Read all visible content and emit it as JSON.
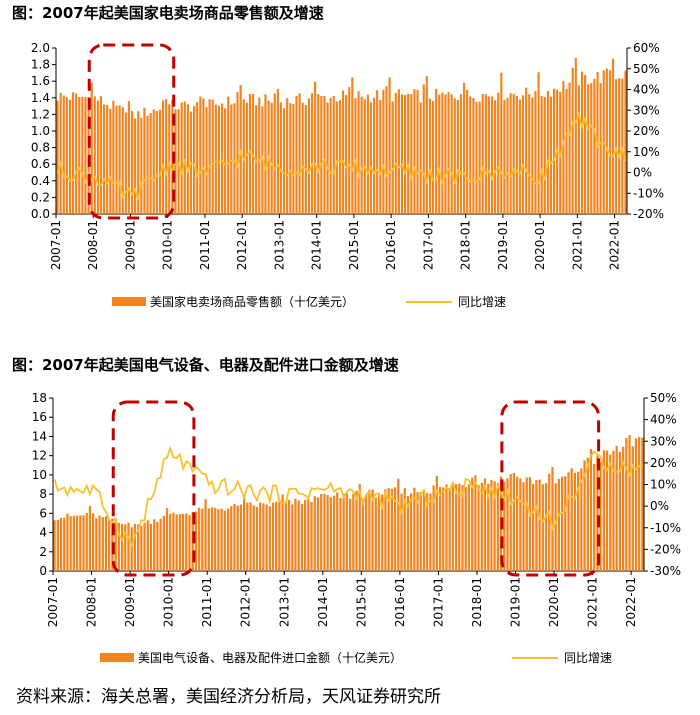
{
  "chart_data": [
    {
      "type": "bar+line",
      "title": "图：2007年起美国家电卖场商品零售额及增速",
      "x_tick_labels": [
        "2007-01",
        "2008-01",
        "2009-01",
        "2010-01",
        "2011-01",
        "2012-01",
        "2013-01",
        "2014-01",
        "2015-01",
        "2016-01",
        "2017-01",
        "2018-01",
        "2019-01",
        "2020-01",
        "2021-01",
        "2022-01"
      ],
      "y_left": {
        "min": 0,
        "max": 2.0,
        "step": 0.2,
        "tick_labels": [
          "0.0",
          "0.2",
          "0.4",
          "0.6",
          "0.8",
          "1.0",
          "1.2",
          "1.4",
          "1.6",
          "1.8",
          "2.0"
        ]
      },
      "y_right": {
        "min": -20,
        "max": 60,
        "step": 10,
        "tick_labels": [
          "-20%",
          "-10%",
          "0%",
          "10%",
          "20%",
          "30%",
          "40%",
          "50%",
          "60%"
        ]
      },
      "legend": {
        "bar": "美国家电卖场商品零售额（十亿美元）",
        "line": "同比增速"
      },
      "bar_unit": "十亿美元",
      "line_unit": "%",
      "annotation": "dashed box: 2008-01 to 2010-01",
      "yearly_bar_base": [
        1.42,
        1.4,
        1.18,
        1.3,
        1.3,
        1.38,
        1.35,
        1.4,
        1.42,
        1.43,
        1.42,
        1.43,
        1.45,
        1.45,
        1.62,
        1.68
      ],
      "yearly_growth": [
        1,
        -2,
        -12,
        4,
        0,
        8,
        2,
        3,
        2,
        1,
        -1,
        -3,
        1,
        -2,
        25,
        8
      ],
      "highlight": [
        {
          "from": "2008-01",
          "to": "2010-01"
        }
      ]
    },
    {
      "type": "bar+line",
      "title": "图：2007年起美国电气设备、电器及配件进口金额及增速",
      "x_tick_labels": [
        "2007-01",
        "2008-01",
        "2009-01",
        "2010-01",
        "2011-01",
        "2012-01",
        "2013-01",
        "2014-01",
        "2015-01",
        "2016-01",
        "2017-01",
        "2018-01",
        "2019-01",
        "2020-01",
        "2021-01",
        "2022-01"
      ],
      "y_left": {
        "min": 0,
        "max": 18,
        "step": 2,
        "tick_labels": [
          "0",
          "2",
          "4",
          "6",
          "8",
          "10",
          "12",
          "14",
          "16",
          "18"
        ]
      },
      "y_right": {
        "min": -30,
        "max": 50,
        "step": 10,
        "tick_labels": [
          "-30%",
          "-20%",
          "-10%",
          "0%",
          "10%",
          "20%",
          "30%",
          "40%",
          "50%"
        ]
      },
      "legend": {
        "bar": "美国电气设备、电器及配件进口金额（十亿美元）",
        "line": "同比增速"
      },
      "bar_unit": "十亿美元",
      "line_unit": "%",
      "annotation": "dashed boxes: 2008-09 to 2010-07 and 2018-10 to 2021-01",
      "yearly_bar_base": [
        5.6,
        5.8,
        4.6,
        5.8,
        6.4,
        6.8,
        7.0,
        7.6,
        8.0,
        8.2,
        8.6,
        9.4,
        9.6,
        9.2,
        11.6,
        13.2
      ],
      "yearly_growth": [
        9,
        7,
        -18,
        25,
        10,
        7,
        5,
        8,
        5,
        0,
        6,
        10,
        3,
        -8,
        22,
        17
      ],
      "highlight": [
        {
          "from": "2008-09",
          "to": "2010-07"
        },
        {
          "from": "2018-10",
          "to": "2021-01"
        }
      ]
    }
  ],
  "source": "资料来源：海关总署，美国经济分析局，天风证券研究所",
  "colors": {
    "bar": "#F08420",
    "line": "#FBC02D",
    "box": "#C00000"
  }
}
